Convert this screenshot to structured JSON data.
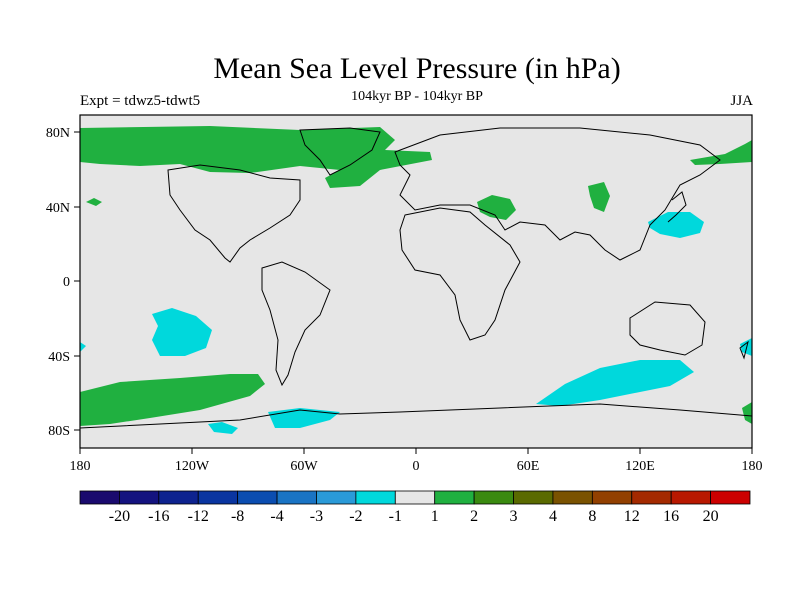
{
  "title": "Mean Sea Level Pressure (in hPa)",
  "subtitle": "104kyr BP - 104kyr BP",
  "left_label": "Expt = tdwz5-tdwt5",
  "right_label": "JJA",
  "lat_labels": [
    "80N",
    "40N",
    "0",
    "40S",
    "80S"
  ],
  "lon_labels": [
    "180",
    "120W",
    "60W",
    "0",
    "60E",
    "120E",
    "180"
  ],
  "colorbar": {
    "colors": [
      "#1a0a6e",
      "#14137f",
      "#0e238f",
      "#0a35a0",
      "#0b4db0",
      "#1a74c4",
      "#2a9ad8",
      "#00d8dc",
      "#e6e6e6",
      "#20b040",
      "#3a8a10",
      "#5a6a00",
      "#7a5200",
      "#924000",
      "#a42a00",
      "#b81800",
      "#cc0000"
    ],
    "labels": [
      "-20",
      "-16",
      "-12",
      "-8",
      "-4",
      "-3",
      "-2",
      "-1",
      "1",
      "2",
      "3",
      "4",
      "8",
      "12",
      "16",
      "20"
    ]
  },
  "legend_colors": {
    "land_bg": "#e6e6e6",
    "positive": "#20b040",
    "negative": "#00d8dc"
  }
}
